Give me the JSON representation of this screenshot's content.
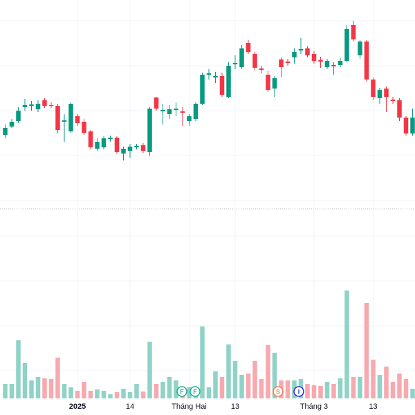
{
  "chart_data": {
    "type": "candlestick",
    "categories": [
      null,
      null,
      null,
      null,
      null,
      null,
      null,
      null,
      null,
      null,
      null,
      "2025",
      null,
      null,
      null,
      null,
      null,
      null,
      null,
      "14",
      null,
      null,
      null,
      null,
      null,
      null,
      null,
      null,
      "Tháng Hai",
      null,
      null,
      null,
      null,
      null,
      null,
      "13",
      null,
      null,
      null,
      null,
      null,
      null,
      null,
      null,
      null,
      null,
      null,
      "Tháng 3",
      null,
      null,
      null,
      null,
      null,
      null,
      null,
      null,
      "13",
      null,
      null,
      null,
      null,
      null,
      null
    ],
    "open": [
      105,
      117,
      125,
      145,
      147,
      142,
      155,
      148,
      147,
      124,
      110,
      132,
      124,
      110,
      85,
      87,
      99,
      101,
      78,
      82,
      87,
      90,
      80,
      159,
      139,
      135,
      141,
      139,
      125,
      128,
      150,
      192,
      188,
      190,
      160,
      207,
      203,
      238,
      222,
      201,
      192,
      172,
      214,
      211,
      217,
      227,
      230,
      222,
      213,
      203,
      206,
      206,
      212,
      264,
      220,
      240,
      185,
      158,
      172,
      156,
      155,
      130,
      107
    ],
    "high": [
      120,
      128,
      145,
      157,
      154,
      155,
      158,
      152,
      150,
      135,
      152,
      135,
      128,
      112,
      100,
      103,
      104,
      103,
      88,
      92,
      92,
      93,
      145,
      160,
      150,
      148,
      152,
      145,
      135,
      152,
      195,
      200,
      196,
      195,
      210,
      220,
      235,
      242,
      225,
      205,
      198,
      190,
      217,
      215,
      230,
      245,
      233,
      226,
      218,
      215,
      210,
      216,
      264,
      270,
      242,
      242,
      188,
      173,
      175,
      160,
      158,
      132,
      143
    ],
    "low": [
      100,
      115,
      122,
      140,
      140,
      138,
      144,
      144,
      108,
      95,
      108,
      118,
      105,
      84,
      82,
      84,
      95,
      77,
      68,
      72,
      84,
      79,
      75,
      140,
      120,
      128,
      132,
      118,
      118,
      125,
      148,
      185,
      180,
      160,
      158,
      200,
      200,
      222,
      198,
      194,
      167,
      160,
      188,
      205,
      208,
      222,
      217,
      208,
      202,
      200,
      192,
      203,
      210,
      240,
      215,
      182,
      155,
      150,
      138,
      150,
      125,
      104,
      104
    ],
    "close": [
      115,
      124,
      140,
      148,
      149,
      150,
      147,
      147,
      112,
      126,
      150,
      122,
      108,
      87,
      95,
      100,
      101,
      80,
      85,
      88,
      89,
      82,
      143,
      143,
      141,
      142,
      143,
      137,
      132,
      150,
      192,
      194,
      190,
      163,
      205,
      209,
      230,
      225,
      202,
      199,
      170,
      187,
      203,
      209,
      225,
      229,
      220,
      212,
      211,
      212,
      204,
      212,
      258,
      243,
      240,
      185,
      160,
      170,
      160,
      154,
      130,
      107,
      130
    ],
    "volume": [
      21,
      21,
      84,
      51,
      26,
      31,
      29,
      28,
      59,
      21,
      16,
      11,
      24,
      11,
      13,
      11,
      6,
      9,
      14,
      9,
      21,
      10,
      82,
      21,
      24,
      31,
      26,
      16,
      16,
      16,
      104,
      16,
      39,
      31,
      78,
      54,
      34,
      36,
      54,
      28,
      77,
      66,
      26,
      26,
      26,
      28,
      21,
      19,
      18,
      24,
      21,
      29,
      156,
      31,
      31,
      138,
      56,
      34,
      46,
      24,
      36,
      28,
      14
    ],
    "up_color": "#089981",
    "down_color": "#f23645",
    "volume_up_color": "#8fd3c7",
    "volume_down_color": "#f7a9af",
    "ylim": [
      0,
      300
    ],
    "yticks": [
      10,
      75,
      140,
      205,
      270
    ],
    "volume_ylim": [
      0,
      300
    ],
    "volume_yticks": [
      40,
      105,
      170,
      235
    ],
    "grid": true,
    "events": [
      "F",
      "F",
      "S",
      "I"
    ]
  }
}
